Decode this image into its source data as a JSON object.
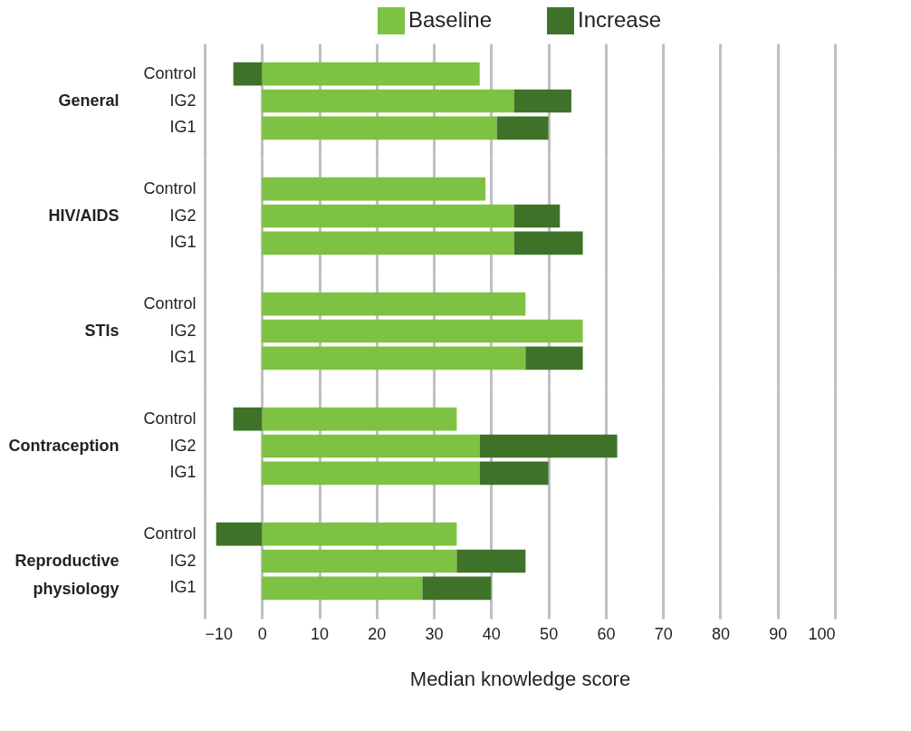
{
  "chart_data": [
    {
      "type": "bar",
      "orientation": "horizontal",
      "stacked": true,
      "ylabel": "General",
      "categories": [
        "Control",
        "IG2",
        "IG1"
      ],
      "series": [
        {
          "name": "Baseline",
          "color": "#7dc242",
          "values": [
            38,
            44,
            41
          ]
        },
        {
          "name": "Increase",
          "color": "#3f7229",
          "values": [
            -5,
            10,
            9
          ]
        }
      ],
      "xlim": [
        -10,
        100
      ],
      "xticks": [
        -10,
        0,
        10,
        20,
        30,
        40,
        50,
        60,
        70,
        80,
        90,
        100
      ],
      "grid": "x",
      "legend": "top",
      "tick_labels": "y"
    },
    {
      "type": "bar",
      "orientation": "horizontal",
      "stacked": true,
      "ylabel": "HIV/AIDS",
      "categories": [
        "Control",
        "IG2",
        "IG1"
      ],
      "series": [
        {
          "name": "Baseline",
          "color": "#7dc242",
          "values": [
            39,
            44,
            44
          ]
        },
        {
          "name": "Increase",
          "color": "#3f7229",
          "values": [
            0,
            8,
            12
          ]
        }
      ],
      "xlim": [
        -10,
        100
      ],
      "xticks": [
        -10,
        0,
        10,
        20,
        30,
        40,
        50,
        60,
        70,
        80,
        90,
        100
      ],
      "grid": "x",
      "tick_labels": "y"
    },
    {
      "type": "bar",
      "orientation": "horizontal",
      "stacked": true,
      "ylabel": "STIs",
      "categories": [
        "Control",
        "IG2",
        "IG1"
      ],
      "series": [
        {
          "name": "Baseline",
          "color": "#7dc242",
          "values": [
            46,
            56,
            46
          ]
        },
        {
          "name": "Increase",
          "color": "#3f7229",
          "values": [
            0,
            0,
            10
          ]
        }
      ],
      "xlim": [
        -10,
        100
      ],
      "xticks": [
        -10,
        0,
        10,
        20,
        30,
        40,
        50,
        60,
        70,
        80,
        90,
        100
      ],
      "grid": "x",
      "tick_labels": "y"
    },
    {
      "type": "bar",
      "orientation": "horizontal",
      "stacked": true,
      "ylabel": "Contraception",
      "categories": [
        "Control",
        "IG2",
        "IG1"
      ],
      "series": [
        {
          "name": "Baseline",
          "color": "#7dc242",
          "values": [
            34,
            38,
            38
          ]
        },
        {
          "name": "Increase",
          "color": "#3f7229",
          "values": [
            -5,
            24,
            12
          ]
        }
      ],
      "xlim": [
        -10,
        100
      ],
      "xticks": [
        -10,
        0,
        10,
        20,
        30,
        40,
        50,
        60,
        70,
        80,
        90,
        100
      ],
      "grid": "x",
      "tick_labels": "y"
    },
    {
      "type": "bar",
      "orientation": "horizontal",
      "stacked": true,
      "ylabel": "Reproductive physiology",
      "xlabel": "Median knowledge score",
      "categories": [
        "Control",
        "IG2",
        "IG1"
      ],
      "series": [
        {
          "name": "Baseline",
          "color": "#7dc242",
          "values": [
            34,
            34,
            28
          ]
        },
        {
          "name": "Increase",
          "color": "#3f7229",
          "values": [
            -8,
            12,
            12
          ]
        }
      ],
      "xlim": [
        -10,
        100
      ],
      "xticks": [
        -10,
        0,
        10,
        20,
        30,
        40,
        50,
        60,
        70,
        80,
        90,
        100
      ],
      "grid": "x"
    }
  ]
}
